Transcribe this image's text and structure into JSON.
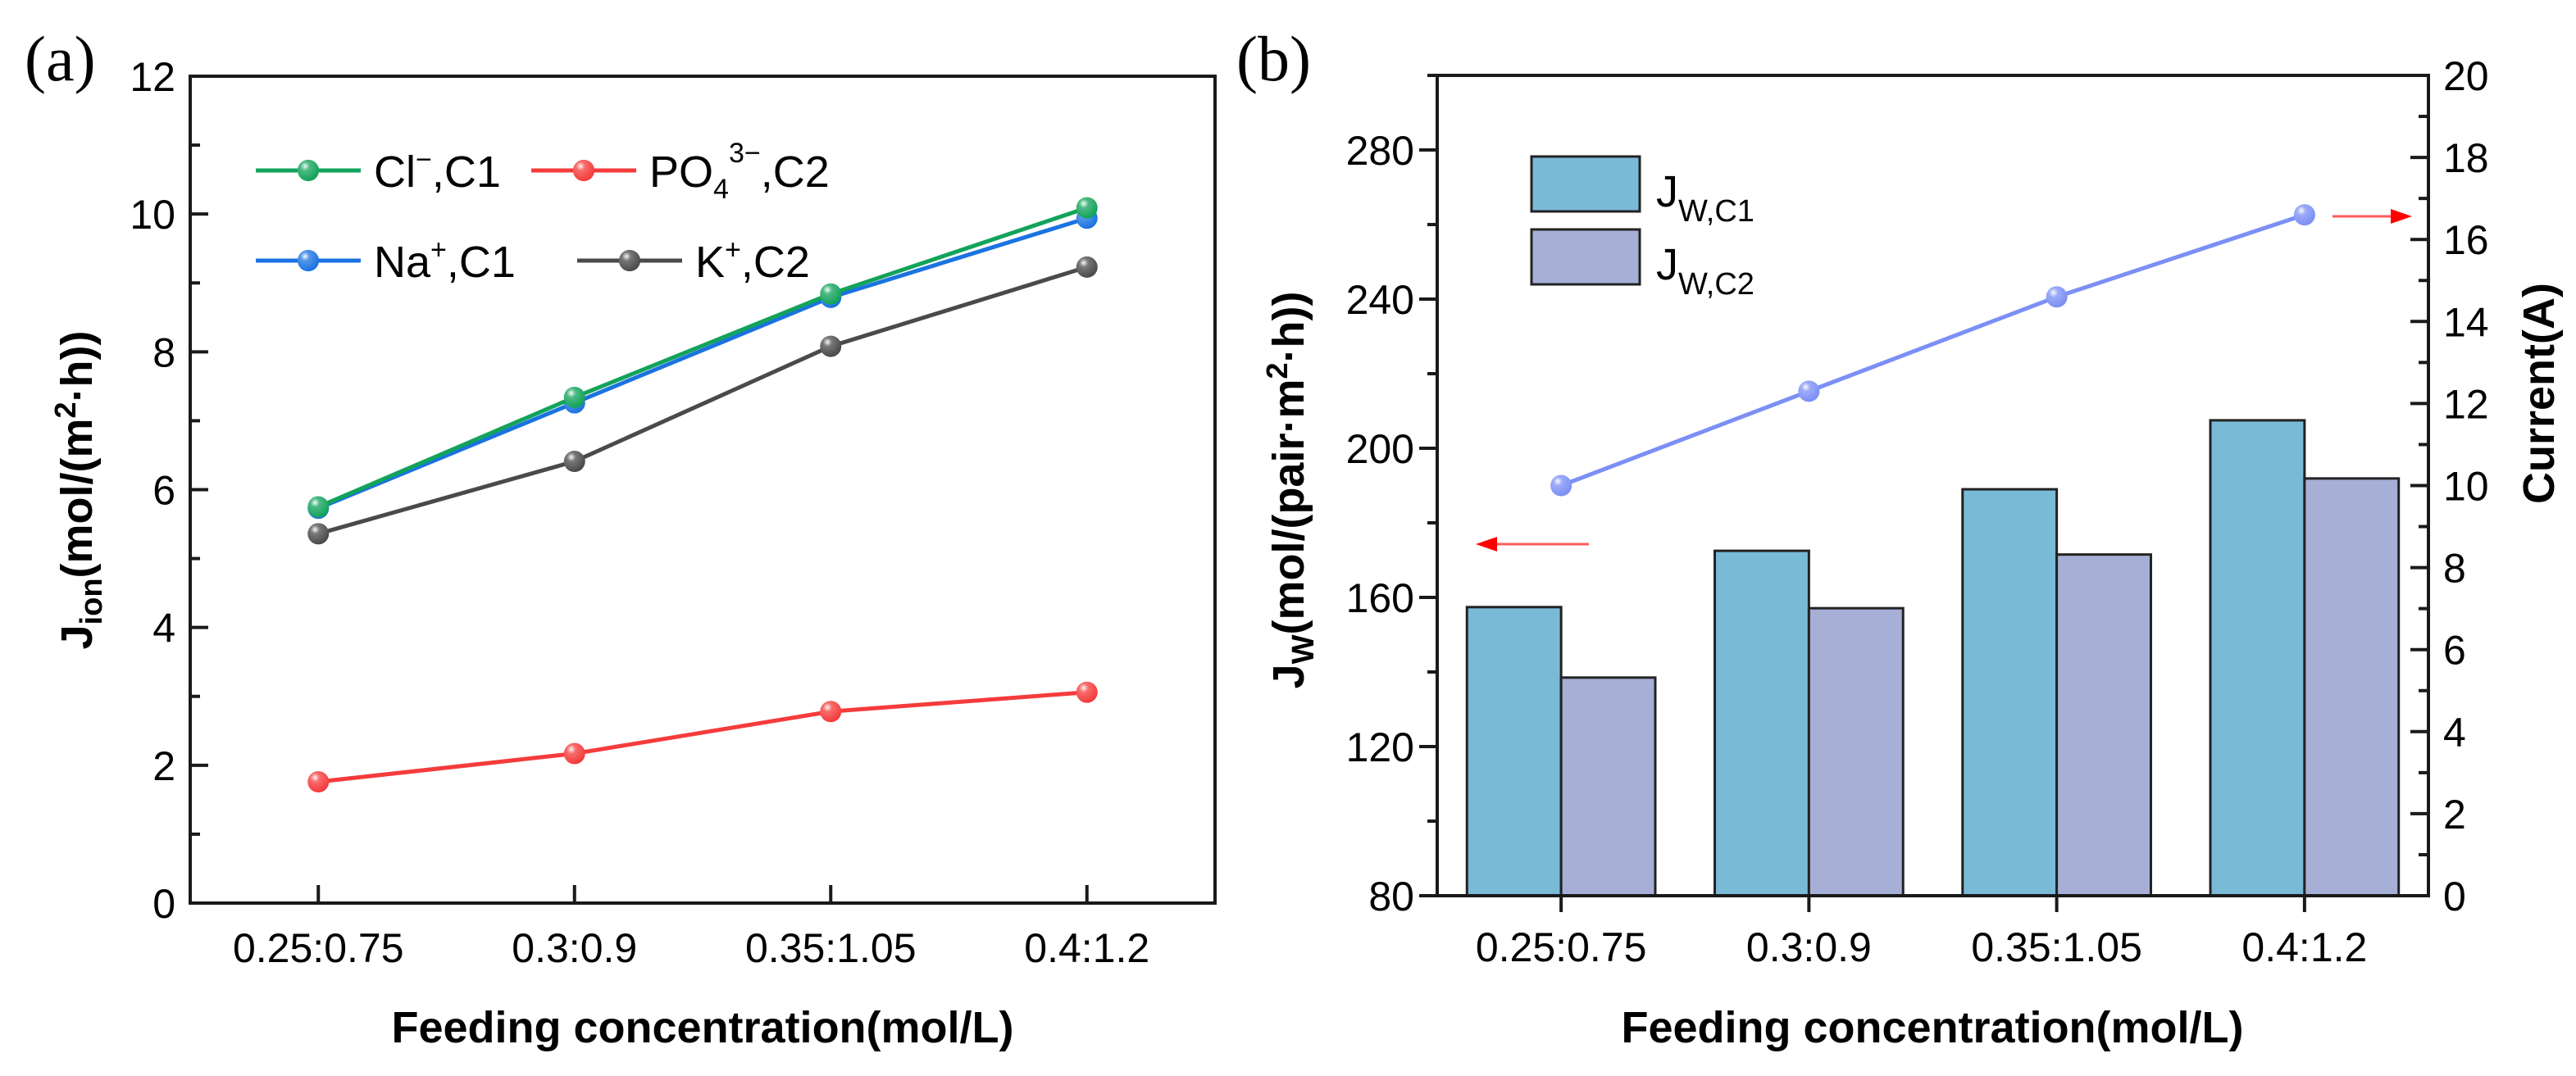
{
  "figure": {
    "panel_a_label": "(a)",
    "panel_b_label": "(b)"
  },
  "chart_data": [
    {
      "type": "line",
      "panel": "a",
      "title": "",
      "xlabel": "Feeding concentration(mol/L)",
      "ylabel_main": "J",
      "ylabel_sub": "ion",
      "ylabel_rest": "(mol/(m",
      "ylabel_sup": "2",
      "ylabel_end": "·h))",
      "categories": [
        "0.25:0.75",
        "0.3:0.9",
        "0.35:1.05",
        "0.4:1.2"
      ],
      "ylim": [
        0,
        12
      ],
      "yticks": [
        0,
        2,
        4,
        6,
        8,
        10,
        12
      ],
      "yminor_step": 1,
      "grid": false,
      "legend_position": "top-left",
      "series": [
        {
          "name": "Cl⁻,C1",
          "label_main": "Cl",
          "label_sup": "−",
          "label_end": ",C1",
          "color": "#12a35a",
          "values": [
            5.75,
            7.34,
            8.84,
            10.09
          ]
        },
        {
          "name": "PO₄³⁻,C2",
          "label_main": "PO",
          "label_sub": "4",
          "label_sup": "3−",
          "label_end": ",C2",
          "color": "#f53b3b",
          "values": [
            1.76,
            2.17,
            2.78,
            3.06
          ]
        },
        {
          "name": "Na⁺,C1",
          "label_main": "Na",
          "label_sup": "+",
          "label_end": ",C1",
          "color": "#1a73e0",
          "values": [
            5.73,
            7.26,
            8.79,
            9.94
          ]
        },
        {
          "name": "K⁺,C2",
          "label_main": "K",
          "label_sup": "+",
          "label_end": ",C2",
          "color": "#4a4a4a",
          "values": [
            5.36,
            6.41,
            8.08,
            9.23
          ]
        }
      ]
    },
    {
      "type": "bar",
      "panel": "b",
      "title": "",
      "xlabel": "Feeding concentration(mol/L)",
      "ylabel_main": "J",
      "ylabel_sub": "W",
      "ylabel_rest": "(mol/(pair·m",
      "ylabel_sup": "2",
      "ylabel_end": "·h))",
      "y2label": "Current(A)",
      "categories": [
        "0.25:0.75",
        "0.3:0.9",
        "0.35:1.05",
        "0.4:1.2"
      ],
      "ylim": [
        80,
        300
      ],
      "yticks": [
        80,
        120,
        160,
        200,
        240,
        280
      ],
      "yminor_step": 20,
      "y2lim": [
        0,
        20
      ],
      "y2ticks": [
        0,
        2,
        4,
        6,
        8,
        10,
        12,
        14,
        16,
        18,
        20
      ],
      "y2minor_step": 1,
      "grid": false,
      "legend_position": "top-left",
      "series": [
        {
          "name": "J_W,C1",
          "label_main": "J",
          "label_sub": "W,C1",
          "kind": "bar",
          "axis": "left",
          "color": "#79bad7",
          "values": [
            157.4,
            172.5,
            189.0,
            207.5
          ]
        },
        {
          "name": "J_W,C2",
          "label_main": "J",
          "label_sub": "W,C2",
          "kind": "bar",
          "axis": "left",
          "color": "#a7afd6",
          "values": [
            138.5,
            157.1,
            171.5,
            191.9
          ]
        },
        {
          "name": "Current",
          "kind": "line",
          "axis": "right",
          "color": "#7b8ff5",
          "values": [
            10.0,
            12.3,
            14.6,
            16.6
          ]
        }
      ],
      "annotations": [
        {
          "type": "arrow",
          "direction": "left",
          "meaning": "bars read on left axis",
          "color": "#ff0000"
        },
        {
          "type": "arrow",
          "direction": "right",
          "meaning": "line reads on right axis",
          "color": "#ff0000"
        }
      ]
    }
  ]
}
